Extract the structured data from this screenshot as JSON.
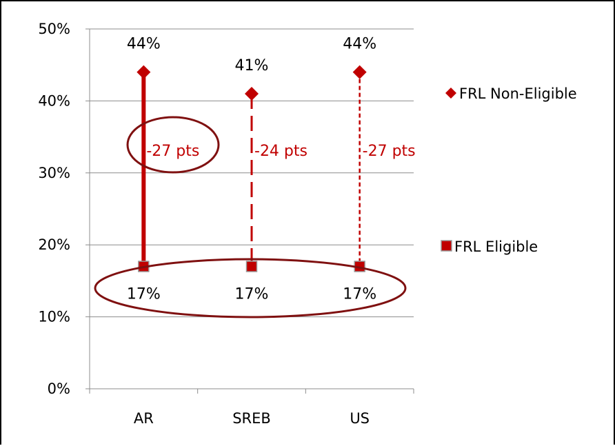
{
  "chart_data": {
    "type": "line",
    "categories": [
      "AR",
      "SREB",
      "US"
    ],
    "series": [
      {
        "name": "FRL Non-Eligible",
        "values": [
          44,
          41,
          44
        ],
        "marker": "diamond",
        "color": "#c00000",
        "labels": [
          "44%",
          "41%",
          "44%"
        ]
      },
      {
        "name": "FRL Eligible",
        "values": [
          17,
          17,
          17
        ],
        "marker": "square",
        "color": "#c00000",
        "labels": [
          "17%",
          "17%",
          "17%"
        ]
      }
    ],
    "gaps": [
      {
        "category": "AR",
        "label": "-27 pts",
        "line_style": "solid"
      },
      {
        "category": "SREB",
        "label": "-24 pts",
        "line_style": "long-dash"
      },
      {
        "category": "US",
        "label": "-27 pts",
        "line_style": "short-dash"
      }
    ],
    "yticks": [
      "0%",
      "10%",
      "20%",
      "30%",
      "40%",
      "50%"
    ],
    "ylim": [
      0,
      50
    ],
    "grid": true,
    "legend_position": "right",
    "highlight_color": "#7f1010"
  }
}
